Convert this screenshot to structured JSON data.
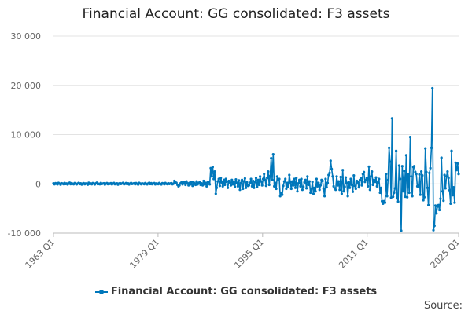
{
  "chart_data": {
    "type": "line",
    "title": "Financial Account: GG consolidated: F3 assets",
    "xlabel": "",
    "ylabel": "",
    "x_start": "1963 Q1",
    "x_end": "2025 Q1",
    "x_ticks": [
      "1963 Q1",
      "1979 Q1",
      "1995 Q1",
      "2011 Q1",
      "2025 Q1"
    ],
    "ylim": [
      -10000,
      30000
    ],
    "y_ticks": [
      -10000,
      0,
      10000,
      20000,
      30000
    ],
    "y_tick_labels": [
      "-10 000",
      "0",
      "10 000",
      "20 000",
      "30 000"
    ],
    "grid": true,
    "legend_position": "bottom",
    "series": [
      {
        "name": "Financial Account: GG consolidated: F3 assets",
        "color": "#0077bb",
        "values": [
          100,
          -80,
          150,
          20,
          -100,
          200,
          50,
          -150,
          120,
          60,
          -50,
          180,
          -20,
          90,
          -120,
          40,
          250,
          -60,
          130,
          10,
          -90,
          160,
          30,
          -110,
          70,
          200,
          -40,
          110,
          -130,
          50,
          140,
          -70,
          90,
          20,
          -160,
          210,
          -30,
          80,
          -90,
          170,
          60,
          -120,
          100,
          250,
          -50,
          30,
          -80,
          190,
          -20,
          70,
          120,
          -140,
          40,
          160,
          -60,
          90,
          -10,
          130,
          -100,
          50,
          180,
          -70,
          20,
          110,
          -150,
          60,
          140,
          -30,
          80,
          200,
          -90,
          30,
          160,
          -40,
          100,
          -120,
          70,
          190,
          -20,
          50,
          120,
          -80,
          160,
          30,
          -130,
          200,
          60,
          -90,
          110,
          40,
          -60,
          170,
          20,
          -110,
          90,
          220,
          -40,
          130,
          -70,
          50,
          160,
          -100,
          80,
          40,
          -50,
          190,
          10,
          -120,
          140,
          60,
          -90,
          180,
          30,
          -60,
          120,
          -30,
          90,
          150,
          -80,
          40,
          600,
          350,
          200,
          -200,
          -500,
          -300,
          100,
          300,
          -100,
          200,
          400,
          -200,
          500,
          100,
          -300,
          200,
          -100,
          400,
          -400,
          300,
          100,
          -200,
          500,
          -100,
          200,
          300,
          -200,
          100,
          -300,
          600,
          -100,
          200,
          -500,
          300,
          400,
          -100,
          3200,
          1500,
          3400,
          1000,
          2500,
          -2000,
          -800,
          500,
          1000,
          -400,
          1200,
          300,
          -500,
          800,
          -200,
          1000,
          400,
          -800,
          600,
          300,
          -300,
          800,
          -100,
          400,
          -600,
          900,
          200,
          -500,
          700,
          -1200,
          200,
          800,
          -1000,
          500,
          1100,
          -800,
          300,
          -400,
          -300,
          200,
          1000,
          -500,
          600,
          -800,
          400,
          1200,
          -600,
          800,
          -200,
          1500,
          500,
          -300,
          1000,
          2000,
          800,
          -400,
          1200,
          2500,
          -200,
          1600,
          5200,
          800,
          6000,
          -500,
          200,
          -1000,
          1500,
          800,
          1000,
          -2500,
          -1800,
          -2200,
          -400,
          500,
          1000,
          -1000,
          200,
          -600,
          1800,
          300,
          -1000,
          500,
          -300,
          1000,
          -800,
          1200,
          -1500,
          100,
          800,
          -500,
          1000,
          -1200,
          -600,
          300,
          800,
          -900,
          1500,
          -200,
          500,
          -1800,
          -1000,
          400,
          -2000,
          -800,
          -1500,
          1000,
          -500,
          200,
          -1200,
          -300,
          800,
          600,
          -1000,
          -2500,
          1000,
          -700,
          200,
          1800,
          2200,
          4700,
          3000,
          1500,
          -500,
          -900,
          -1200,
          1500,
          -300,
          500,
          -1200,
          1400,
          -2000,
          2800,
          -1500,
          -600,
          1300,
          200,
          -2500,
          300,
          -800,
          1000,
          -200,
          -1600,
          1700,
          -400,
          -1000,
          600,
          300,
          -700,
          800,
          1200,
          -300,
          2000,
          2400,
          400,
          800,
          1200,
          -500,
          3500,
          -1200,
          1500,
          2500,
          -200,
          800,
          400,
          1300,
          -500,
          300,
          1000,
          -1800,
          -800,
          -3500,
          -4000,
          -3500,
          -3800,
          2000,
          -2500,
          800,
          7300,
          4500,
          -2800,
          13300,
          -2600,
          -1800,
          -900,
          6700,
          -2800,
          -3600,
          3700,
          1000,
          -9500,
          3600,
          -1500,
          2600,
          -2600,
          5800,
          -2700,
          2000,
          -1800,
          9500,
          1500,
          -2500,
          3400,
          3600,
          2400,
          2000,
          -500,
          -500,
          1900,
          -2200,
          2500,
          1700,
          -3300,
          -2700,
          7200,
          2400,
          -800,
          -4300,
          2200,
          3200,
          7300,
          19400,
          -9400,
          -8500,
          -4400,
          -6000,
          -4600,
          -4300,
          -5300,
          -3000,
          5300,
          -1500,
          -3400,
          1800,
          -900,
          1500,
          2500,
          1200,
          -1300,
          -4000,
          6700,
          -2300,
          -700,
          -3800,
          4300,
          2800,
          4100,
          2000
        ]
      }
    ]
  },
  "legend": {
    "label": "Financial Account: GG consolidated: F3 assets"
  },
  "footer": {
    "source": "Source:"
  }
}
